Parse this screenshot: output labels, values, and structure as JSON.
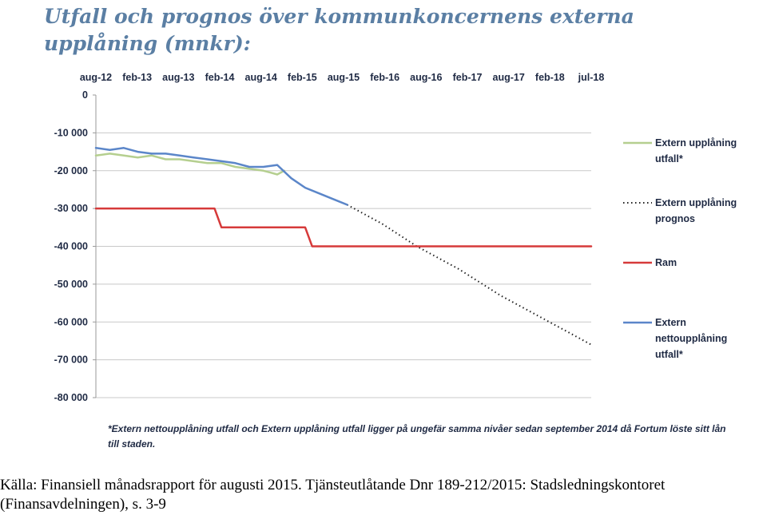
{
  "title": "Utfall och prognos över kommunkoncernens externa upplåning (mnkr):",
  "footnote": "*Extern nettoupplåning utfall och Extern upplåning utfall ligger på ungefär samma nivåer sedan september 2014 då Fortum löste sitt lån till staden.",
  "source": "Källa: Finansiell månadsrapport för augusti 2015. Tjänsteutlåtande Dnr 189-212/2015: Stadsledningskontoret (Finansavdelningen), s. 3-9",
  "chart_data": {
    "type": "line",
    "title": "Utfall och prognos över kommunkoncernens externa upplåning (mnkr):",
    "xlabel": "",
    "ylabel": "",
    "x_tick_labels": [
      "aug-12",
      "feb-13",
      "aug-13",
      "feb-14",
      "aug-14",
      "feb-15",
      "aug-15",
      "feb-16",
      "aug-16",
      "feb-17",
      "aug-17",
      "feb-18",
      "jul-18"
    ],
    "y_tick_labels": [
      "0",
      "-10 000",
      "-20 000",
      "-30 000",
      "-40 000",
      "-50 000",
      "-60 000",
      "-70 000",
      "-80 000"
    ],
    "ylim": [
      -80000,
      0
    ],
    "xlim": [
      "2012-08",
      "2018-07"
    ],
    "x_axis_position": "top",
    "grid": true,
    "legend_position": "right",
    "series": [
      {
        "name": "Extern upplåning utfall*",
        "color": "#b5cf8f",
        "style": "solid",
        "x": [
          "2012-08",
          "2012-10",
          "2012-12",
          "2013-02",
          "2013-04",
          "2013-06",
          "2013-08",
          "2013-10",
          "2013-12",
          "2014-02",
          "2014-04",
          "2014-06",
          "2014-08",
          "2014-09",
          "2014-10",
          "2014-11"
        ],
        "y": [
          -16000,
          -15500,
          -16000,
          -16500,
          -16000,
          -17000,
          -17000,
          -17500,
          -18000,
          -18000,
          -19000,
          -19500,
          -20000,
          -20500,
          -21000,
          -20000
        ]
      },
      {
        "name": "Extern upplåning prognos",
        "color": "#222222",
        "style": "dotted",
        "x": [
          "2015-08",
          "2016-01",
          "2016-06",
          "2016-12",
          "2017-06",
          "2017-12",
          "2018-07"
        ],
        "y": [
          -29000,
          -34000,
          -40000,
          -46000,
          -53000,
          -59000,
          -66000
        ]
      },
      {
        "name": "Ram",
        "color": "#d63a3a",
        "style": "step",
        "x": [
          "2012-08",
          "2014-01",
          "2014-02",
          "2015-02",
          "2015-03",
          "2018-07"
        ],
        "y": [
          -30000,
          -30000,
          -35000,
          -35000,
          -40000,
          -40000
        ]
      },
      {
        "name": "Extern nettoupplåning utfall*",
        "color": "#5b86c9",
        "style": "solid",
        "x": [
          "2012-08",
          "2012-10",
          "2012-12",
          "2013-02",
          "2013-04",
          "2013-06",
          "2013-08",
          "2013-10",
          "2013-12",
          "2014-02",
          "2014-04",
          "2014-06",
          "2014-08",
          "2014-10",
          "2014-12",
          "2015-02",
          "2015-04",
          "2015-06",
          "2015-08"
        ],
        "y": [
          -14000,
          -14500,
          -14000,
          -15000,
          -15500,
          -15500,
          -16000,
          -16500,
          -17000,
          -17500,
          -18000,
          -19000,
          -19000,
          -18500,
          -22000,
          -24500,
          -26000,
          -27500,
          -29000
        ]
      }
    ]
  }
}
